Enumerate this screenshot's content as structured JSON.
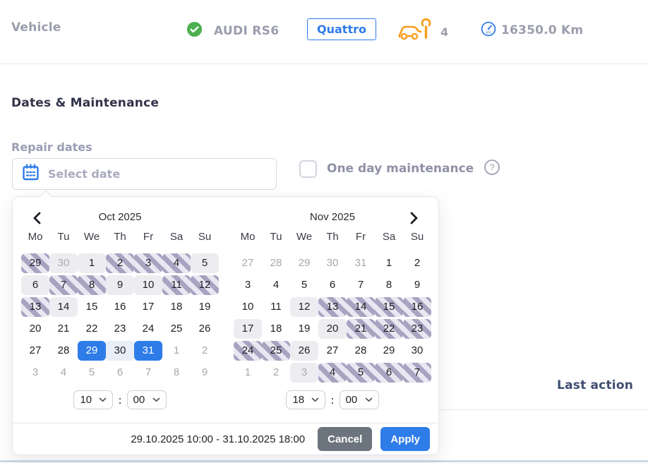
{
  "header": {
    "section_label": "Vehicle",
    "vehicle_name": "AUDI RS6",
    "badge": "Quattro",
    "service_count": "4",
    "mileage": "16350.0 Km"
  },
  "section": {
    "title": "Dates & Maintenance"
  },
  "repair": {
    "label": "Repair dates",
    "placeholder": "Select date",
    "one_day_label": "One day maintenance"
  },
  "table": {
    "last_action": "Last action"
  },
  "calendar": {
    "months": [
      {
        "title": "Oct 2025",
        "weekdays": [
          "Mo",
          "Tu",
          "We",
          "Th",
          "Fr",
          "Sa",
          "Su"
        ],
        "days": [
          {
            "d": "29",
            "state": "busy"
          },
          {
            "d": "30",
            "state": "shaded",
            "muted": true
          },
          {
            "d": "1",
            "state": "shaded"
          },
          {
            "d": "2",
            "state": "busy"
          },
          {
            "d": "3",
            "state": "busy"
          },
          {
            "d": "4",
            "state": "busy"
          },
          {
            "d": "5",
            "state": "shaded"
          },
          {
            "d": "6",
            "state": "shaded"
          },
          {
            "d": "7",
            "state": "busy"
          },
          {
            "d": "8",
            "state": "busy"
          },
          {
            "d": "9",
            "state": "shaded"
          },
          {
            "d": "10",
            "state": "shaded"
          },
          {
            "d": "11",
            "state": "busy"
          },
          {
            "d": "12",
            "state": "busy"
          },
          {
            "d": "13",
            "state": "busy"
          },
          {
            "d": "14",
            "state": "shaded"
          },
          {
            "d": "15",
            "state": "plain"
          },
          {
            "d": "16",
            "state": "plain"
          },
          {
            "d": "17",
            "state": "plain"
          },
          {
            "d": "18",
            "state": "plain"
          },
          {
            "d": "19",
            "state": "plain"
          },
          {
            "d": "20",
            "state": "plain"
          },
          {
            "d": "21",
            "state": "plain"
          },
          {
            "d": "22",
            "state": "plain"
          },
          {
            "d": "23",
            "state": "plain"
          },
          {
            "d": "24",
            "state": "plain"
          },
          {
            "d": "25",
            "state": "plain"
          },
          {
            "d": "26",
            "state": "plain"
          },
          {
            "d": "27",
            "state": "plain"
          },
          {
            "d": "28",
            "state": "plain"
          },
          {
            "d": "29",
            "state": "start"
          },
          {
            "d": "30",
            "state": "range"
          },
          {
            "d": "31",
            "state": "end"
          },
          {
            "d": "1",
            "state": "plain",
            "muted": true
          },
          {
            "d": "2",
            "state": "plain",
            "muted": true
          },
          {
            "d": "3",
            "state": "plain",
            "muted": true
          },
          {
            "d": "4",
            "state": "plain",
            "muted": true
          },
          {
            "d": "5",
            "state": "plain",
            "muted": true
          },
          {
            "d": "6",
            "state": "plain",
            "muted": true
          },
          {
            "d": "7",
            "state": "plain",
            "muted": true
          },
          {
            "d": "8",
            "state": "plain",
            "muted": true
          },
          {
            "d": "9",
            "state": "plain",
            "muted": true
          }
        ]
      },
      {
        "title": "Nov 2025",
        "weekdays": [
          "Mo",
          "Tu",
          "We",
          "Th",
          "Fr",
          "Sa",
          "Su"
        ],
        "days": [
          {
            "d": "27",
            "state": "plain",
            "muted": true
          },
          {
            "d": "28",
            "state": "plain",
            "muted": true
          },
          {
            "d": "29",
            "state": "plain",
            "muted": true
          },
          {
            "d": "30",
            "state": "plain",
            "muted": true
          },
          {
            "d": "31",
            "state": "plain",
            "muted": true
          },
          {
            "d": "1",
            "state": "plain"
          },
          {
            "d": "2",
            "state": "plain"
          },
          {
            "d": "3",
            "state": "plain"
          },
          {
            "d": "4",
            "state": "plain"
          },
          {
            "d": "5",
            "state": "plain"
          },
          {
            "d": "6",
            "state": "plain"
          },
          {
            "d": "7",
            "state": "plain"
          },
          {
            "d": "8",
            "state": "plain"
          },
          {
            "d": "9",
            "state": "plain"
          },
          {
            "d": "10",
            "state": "plain"
          },
          {
            "d": "11",
            "state": "plain"
          },
          {
            "d": "12",
            "state": "shaded"
          },
          {
            "d": "13",
            "state": "busy"
          },
          {
            "d": "14",
            "state": "busy"
          },
          {
            "d": "15",
            "state": "busy"
          },
          {
            "d": "16",
            "state": "busy"
          },
          {
            "d": "17",
            "state": "shaded"
          },
          {
            "d": "18",
            "state": "plain"
          },
          {
            "d": "19",
            "state": "plain"
          },
          {
            "d": "20",
            "state": "shaded"
          },
          {
            "d": "21",
            "state": "busy"
          },
          {
            "d": "22",
            "state": "busy"
          },
          {
            "d": "23",
            "state": "busy"
          },
          {
            "d": "24",
            "state": "busy"
          },
          {
            "d": "25",
            "state": "busy"
          },
          {
            "d": "26",
            "state": "shaded"
          },
          {
            "d": "27",
            "state": "plain"
          },
          {
            "d": "28",
            "state": "plain"
          },
          {
            "d": "29",
            "state": "plain"
          },
          {
            "d": "30",
            "state": "plain"
          },
          {
            "d": "1",
            "state": "plain",
            "muted": true
          },
          {
            "d": "2",
            "state": "plain",
            "muted": true
          },
          {
            "d": "3",
            "state": "shaded",
            "muted": true
          },
          {
            "d": "4",
            "state": "busy"
          },
          {
            "d": "5",
            "state": "busy"
          },
          {
            "d": "6",
            "state": "busy"
          },
          {
            "d": "7",
            "state": "busy"
          }
        ]
      }
    ],
    "times": [
      {
        "hour": "10",
        "minute": "00"
      },
      {
        "hour": "18",
        "minute": "00"
      }
    ],
    "summary": "29.10.2025 10:00 - 31.10.2025 18:00",
    "cancel_label": "Cancel",
    "apply_label": "Apply"
  },
  "colors": {
    "accent_blue": "#2e7ce8",
    "success_green": "#4caf50",
    "service_orange": "#f99d1c",
    "stripe_dark": "#a7a3c0",
    "stripe_light": "#e9e7f1",
    "cancel_gray": "#6c757d",
    "range_fill": "#e9eef8",
    "navy_text": "#3d4d70"
  }
}
